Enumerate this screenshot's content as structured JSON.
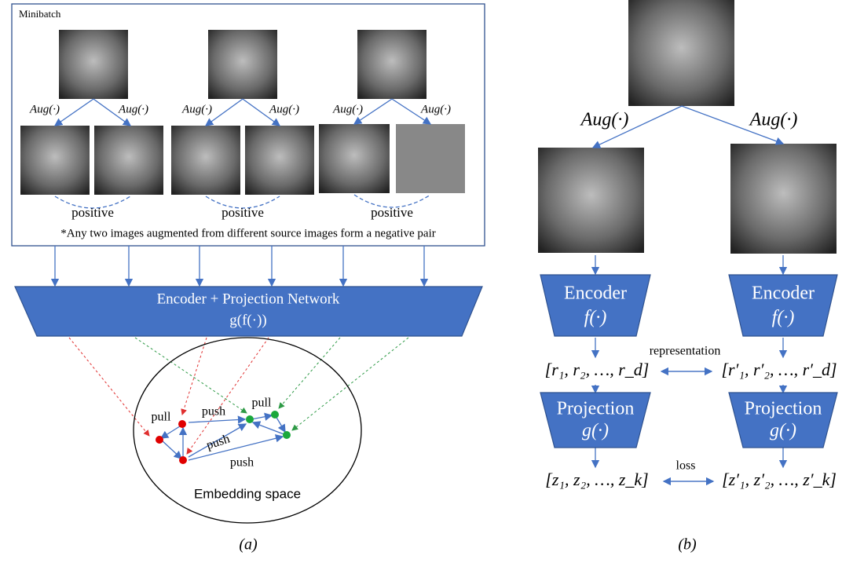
{
  "panel_a": {
    "minibatch_label": "Minibatch",
    "aug_labels": [
      "Aug(·)",
      "Aug(·)",
      "Aug(·)",
      "Aug(·)",
      "Aug(·)",
      "Aug(·)"
    ],
    "positive_labels": [
      "positive",
      "positive",
      "positive"
    ],
    "footnote": "*Any two images augmented from different source images form a negative pair",
    "encoder_title": "Encoder + Projection Network",
    "encoder_function": "g(f(·))",
    "pull_labels": [
      "pull",
      "pull"
    ],
    "push_labels": [
      "push",
      "push",
      "push"
    ],
    "embedding_label": "Embedding space",
    "caption": "(a)"
  },
  "panel_b": {
    "aug_labels": [
      "Aug(·)",
      "Aug(·)"
    ],
    "encoder_titles": [
      "Encoder",
      "Encoder"
    ],
    "encoder_functions": [
      "f(·)",
      "f(·)"
    ],
    "representation_label": "representation",
    "representations": [
      "[r₁, r₂, …, r_d]",
      "[r′₁, r′₂, …, r′_d]"
    ],
    "projection_titles": [
      "Projection",
      "Projection"
    ],
    "projection_functions": [
      "g(·)",
      "g(·)"
    ],
    "loss_label": "loss",
    "outputs": [
      "[z₁, z₂, …, z_k]",
      "[z′₁, z′₂, …, z′_k]"
    ],
    "caption": "(b)"
  }
}
